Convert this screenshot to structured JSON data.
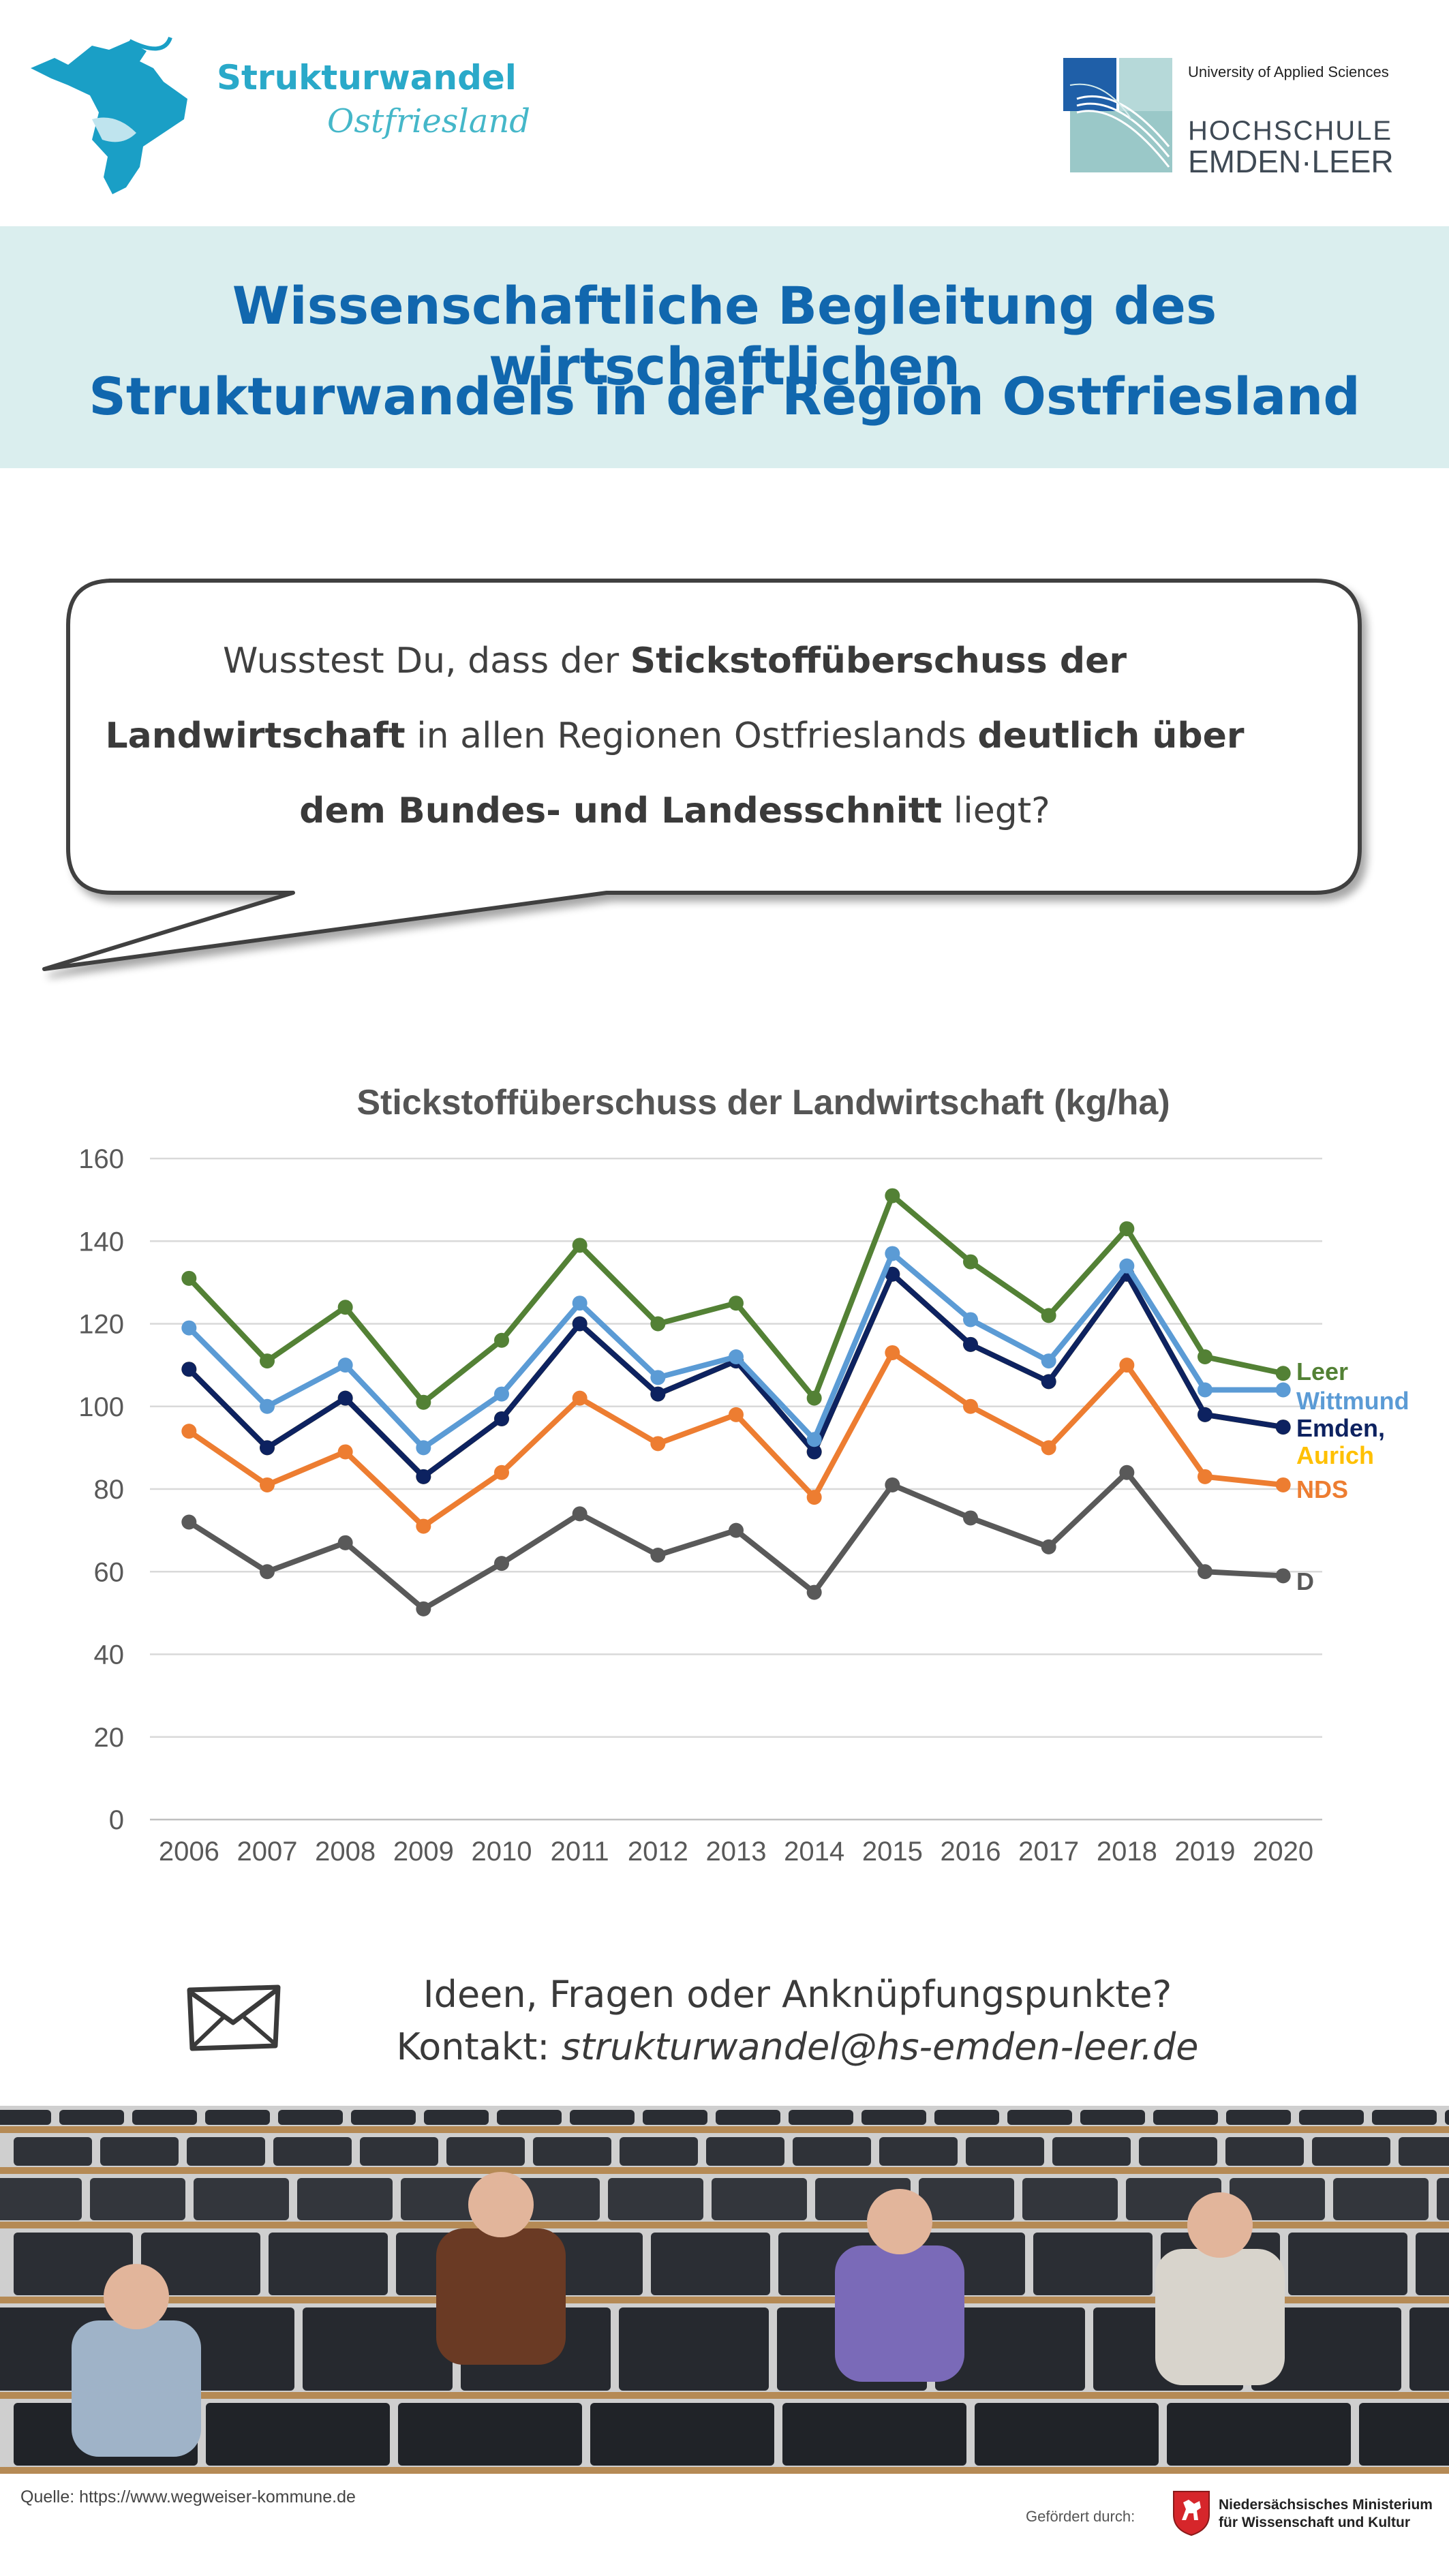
{
  "header": {
    "brand_line_1": "Strukturwandel",
    "brand_line_2": "Ostfriesland",
    "university_tagline": "University of Applied Sciences",
    "university_name_1": "HOCHSCHULE",
    "university_name_2": "EMDEN·LEER"
  },
  "title": {
    "line_1": "Wissenschaftliche Begleitung des wirtschaftlichen",
    "line_2": "Strukturwandels in der Region Ostfriesland"
  },
  "bubble": {
    "part_1": "Wusstest Du, dass der ",
    "bold_1": "Stickstoffüberschuss der Landwirtschaft",
    "part_2": " in allen Regionen Ostfrieslands ",
    "bold_2": "deutlich über dem Bundes- und Landesschnitt",
    "part_3": " liegt?"
  },
  "chart_data": {
    "type": "line",
    "title": "Stickstoffüberschuss der Landwirtschaft (kg/ha)",
    "xlabel": "",
    "ylabel": "",
    "ylim": [
      0,
      160
    ],
    "yticks": [
      "0",
      "20",
      "40",
      "60",
      "80",
      "100",
      "120",
      "140",
      "160"
    ],
    "categories": [
      "2006",
      "2007",
      "2008",
      "2009",
      "2010",
      "2011",
      "2012",
      "2013",
      "2014",
      "2015",
      "2016",
      "2017",
      "2018",
      "2019",
      "2020"
    ],
    "grid": "horizontal",
    "legend": "inline-right",
    "series": [
      {
        "name": "Leer",
        "color": "#538135",
        "values": [
          131,
          111,
          124,
          101,
          116,
          139,
          120,
          125,
          102,
          151,
          135,
          122,
          143,
          112,
          108
        ]
      },
      {
        "name": "Wittmund",
        "color": "#5b9bd5",
        "values": [
          119,
          100,
          110,
          90,
          103,
          125,
          107,
          112,
          92,
          137,
          121,
          111,
          134,
          104,
          104
        ]
      },
      {
        "name": "Emden,",
        "color": "#0d2260",
        "values": [
          109,
          90,
          102,
          83,
          97,
          120,
          103,
          111,
          89,
          132,
          115,
          106,
          132,
          98,
          95
        ]
      },
      {
        "name": "Aurich",
        "color": "#ffc000",
        "values": [
          109,
          90,
          102,
          83,
          97,
          120,
          103,
          111,
          89,
          132,
          115,
          106,
          132,
          98,
          95
        ]
      },
      {
        "name": "NDS",
        "color": "#ed7d31",
        "values": [
          94,
          81,
          89,
          71,
          84,
          102,
          91,
          98,
          78,
          113,
          100,
          90,
          110,
          83,
          81
        ]
      },
      {
        "name": "D",
        "color": "#595959",
        "values": [
          72,
          60,
          67,
          51,
          62,
          74,
          64,
          70,
          55,
          81,
          73,
          66,
          84,
          60,
          59
        ]
      }
    ]
  },
  "contact": {
    "line_1": "Ideen, Fragen oder Anknüpfungspunkte?",
    "prefix": "Kontakt: ",
    "email": "strukturwandel@hs-emden-leer.de"
  },
  "footer": {
    "source": "Quelle: https://www.wegweiser-kommune.de",
    "funded_by": "Gefördert durch:",
    "ministry_1": "Niedersächsisches Ministerium",
    "ministry_2": "für Wissenschaft und Kultur"
  },
  "icons": {
    "mail": "envelope-icon",
    "region": "ostfriesland-map-icon",
    "university": "university-logo-icon",
    "ministry": "lower-saxony-horse-icon"
  }
}
